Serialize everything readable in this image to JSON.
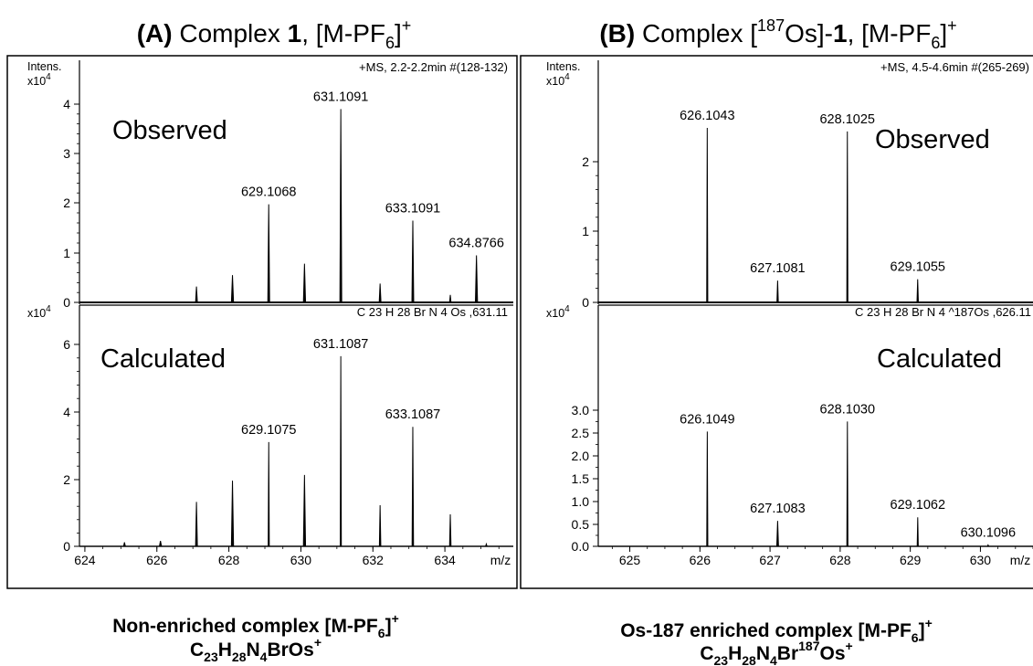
{
  "figure": {
    "panel_a_title": {
      "letter": "(A)",
      "text_1": " Complex ",
      "bold_num": "1",
      "text_2": ", [M-PF",
      "sub": "6",
      "text_3": "]",
      "sup": "+"
    },
    "panel_b_title": {
      "letter": "(B)",
      "text_1": " Complex [",
      "sup_iso": "187",
      "text_2": "Os]-",
      "bold_num": "1",
      "text_3": ", [M-PF",
      "sub": "6",
      "text_4": "]",
      "sup": "+"
    },
    "caption_a": {
      "line1": {
        "t1": "Non-enriched complex [M-PF",
        "sub": "6",
        "t2": "]",
        "sup": "+"
      },
      "line2": {
        "c": "C",
        "c_sub": "23",
        "h": "H",
        "h_sub": "28",
        "n": "N",
        "n_sub": "4",
        "rest": "BrOs",
        "sup": "+"
      }
    },
    "caption_b": {
      "line1": {
        "t1": "Os-187 enriched complex [M-PF",
        "sub": "6",
        "t2": "]",
        "sup": "+"
      },
      "line2": {
        "c": "C",
        "c_sub": "23",
        "h": "H",
        "h_sub": "28",
        "n": "N",
        "n_sub": "4",
        "br": "Br",
        "iso": "187",
        "os": "Os",
        "sup": "+"
      }
    }
  },
  "chart_data": [
    {
      "type": "line",
      "id": "A-observed",
      "label": "Observed",
      "ylabel_top": "Intens.",
      "yscale_label": "x10",
      "yscale_exp": "4",
      "header": "+MS, 2.2-2.2min #(128-132)",
      "xlim": [
        623.85,
        635.9
      ],
      "ylim": [
        0,
        4.3
      ],
      "yticks": [
        "0",
        "1",
        "2",
        "3",
        "4"
      ],
      "peaks": [
        {
          "x": 627.1,
          "y": 0.32,
          "w": 0.05
        },
        {
          "x": 628.1,
          "y": 0.55,
          "w": 0.06
        },
        {
          "x": 629.1068,
          "y": 1.98,
          "w": 0.05,
          "label": "629.1068"
        },
        {
          "x": 630.1,
          "y": 0.78,
          "w": 0.06
        },
        {
          "x": 631.1091,
          "y": 3.9,
          "w": 0.05,
          "label": "631.1091"
        },
        {
          "x": 632.2,
          "y": 0.38,
          "w": 0.05
        },
        {
          "x": 633.1091,
          "y": 1.65,
          "w": 0.05,
          "label": "633.1091"
        },
        {
          "x": 634.15,
          "y": 0.15,
          "w": 0.04
        },
        {
          "x": 634.8766,
          "y": 0.95,
          "w": 0.06,
          "label": "634.8766"
        }
      ]
    },
    {
      "type": "line",
      "id": "A-calculated",
      "label": "Calculated",
      "yscale_label": "x10",
      "yscale_exp": "4",
      "header": "C 23 H 28 Br N 4 Os  ,631.11",
      "xlabel": "m/z",
      "xlim": [
        623.85,
        635.9
      ],
      "ylim": [
        0,
        6.8
      ],
      "yticks": [
        "0",
        "2",
        "4",
        "6"
      ],
      "xticks": [
        "624",
        "626",
        "628",
        "630",
        "632",
        "634"
      ],
      "peaks": [
        {
          "x": 625.1,
          "y": 0.12,
          "w": 0.05
        },
        {
          "x": 626.1,
          "y": 0.16,
          "w": 0.06
        },
        {
          "x": 627.1,
          "y": 1.32,
          "w": 0.05
        },
        {
          "x": 628.1,
          "y": 1.95,
          "w": 0.06
        },
        {
          "x": 629.1075,
          "y": 3.1,
          "w": 0.01,
          "label": "629.1075"
        },
        {
          "x": 630.1,
          "y": 2.12,
          "w": 0.06
        },
        {
          "x": 631.1087,
          "y": 5.65,
          "w": 0.01,
          "label": "631.1087"
        },
        {
          "x": 632.2,
          "y": 1.22,
          "w": 0.04
        },
        {
          "x": 633.1087,
          "y": 3.55,
          "w": 0.04,
          "label": "633.1087"
        },
        {
          "x": 634.15,
          "y": 0.95,
          "w": 0.04
        },
        {
          "x": 635.15,
          "y": 0.07,
          "w": 0.04
        }
      ]
    },
    {
      "type": "line",
      "id": "B-observed",
      "label": "Observed",
      "ylabel_top": "Intens.",
      "yscale_label": "x10",
      "yscale_exp": "4",
      "header": "+MS, 4.5-4.6min #(265-269)",
      "xlim": [
        624.55,
        630.75
      ],
      "ylim": [
        0,
        2.9
      ],
      "yticks": [
        "0",
        "1",
        "2"
      ],
      "peaks": [
        {
          "x": 626.1043,
          "y": 2.48,
          "w": 0.015,
          "label": "626.1043"
        },
        {
          "x": 627.1081,
          "y": 0.31,
          "w": 0.02,
          "label": "627.1081"
        },
        {
          "x": 628.1025,
          "y": 2.43,
          "w": 0.015,
          "label": "628.1025"
        },
        {
          "x": 629.1055,
          "y": 0.33,
          "w": 0.02,
          "label": "629.1055"
        }
      ]
    },
    {
      "type": "line",
      "id": "B-calculated",
      "label": "Calculated",
      "yscale_label": "x10",
      "yscale_exp": "4",
      "header": "C 23 H 28 Br N 4 ^187Os  ,626.11",
      "xlabel": "m/z",
      "xlim": [
        624.55,
        630.75
      ],
      "ylim": [
        0,
        3.12
      ],
      "yticks": [
        "0.0",
        "0.5",
        "1.0",
        "1.5",
        "2.0",
        "2.5",
        "3.0"
      ],
      "xticks": [
        "625",
        "626",
        "627",
        "628",
        "629",
        "630"
      ],
      "peaks": [
        {
          "x": 626.1049,
          "y": 2.53,
          "w": 0.015,
          "label": "626.1049"
        },
        {
          "x": 627.1083,
          "y": 0.56,
          "w": 0.025,
          "label": "627.1083"
        },
        {
          "x": 628.103,
          "y": 2.75,
          "w": 0.015,
          "label": "628.1030"
        },
        {
          "x": 629.1062,
          "y": 0.64,
          "w": 0.015,
          "label": "629.1062"
        },
        {
          "x": 630.1096,
          "y": 0.03,
          "w": 0.02,
          "label": "630.1096"
        }
      ]
    }
  ]
}
